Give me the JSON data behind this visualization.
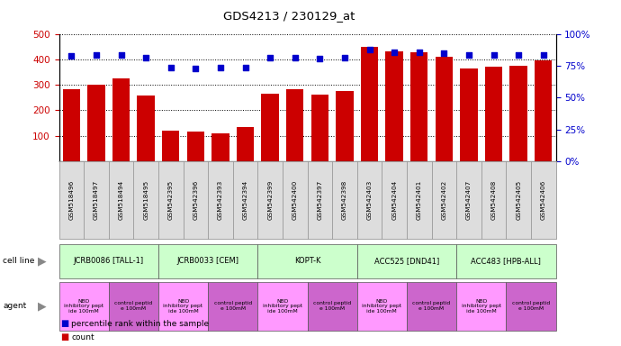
{
  "title": "GDS4213 / 230129_at",
  "samples": [
    "GSM518496",
    "GSM518497",
    "GSM518494",
    "GSM518495",
    "GSM542395",
    "GSM542396",
    "GSM542393",
    "GSM542394",
    "GSM542399",
    "GSM542400",
    "GSM542397",
    "GSM542398",
    "GSM542403",
    "GSM542404",
    "GSM542401",
    "GSM542402",
    "GSM542407",
    "GSM542408",
    "GSM542405",
    "GSM542406"
  ],
  "counts": [
    285,
    300,
    325,
    260,
    120,
    115,
    108,
    135,
    265,
    285,
    262,
    278,
    450,
    433,
    430,
    413,
    365,
    372,
    377,
    397
  ],
  "percentiles": [
    83,
    84,
    84,
    82,
    74,
    73,
    74,
    74,
    82,
    82,
    81,
    82,
    88,
    86,
    86,
    85,
    84,
    84,
    84,
    84
  ],
  "cell_lines": [
    {
      "label": "JCRB0086 [TALL-1]",
      "start": 0,
      "end": 4
    },
    {
      "label": "JCRB0033 [CEM]",
      "start": 4,
      "end": 8
    },
    {
      "label": "KOPT-K",
      "start": 8,
      "end": 12
    },
    {
      "label": "ACC525 [DND41]",
      "start": 12,
      "end": 16
    },
    {
      "label": "ACC483 [HPB-ALL]",
      "start": 16,
      "end": 20
    }
  ],
  "agents": [
    {
      "label": "NBD\ninhibitory pept\nide 100mM",
      "start": 0,
      "end": 2,
      "is_nbd": true
    },
    {
      "label": "control peptid\ne 100mM",
      "start": 2,
      "end": 4,
      "is_nbd": false
    },
    {
      "label": "NBD\ninhibitory pept\nide 100mM",
      "start": 4,
      "end": 6,
      "is_nbd": true
    },
    {
      "label": "control peptid\ne 100mM",
      "start": 6,
      "end": 8,
      "is_nbd": false
    },
    {
      "label": "NBD\ninhibitory pept\nide 100mM",
      "start": 8,
      "end": 10,
      "is_nbd": true
    },
    {
      "label": "control peptid\ne 100mM",
      "start": 10,
      "end": 12,
      "is_nbd": false
    },
    {
      "label": "NBD\ninhibitory pept\nide 100mM",
      "start": 12,
      "end": 14,
      "is_nbd": true
    },
    {
      "label": "control peptid\ne 100mM",
      "start": 14,
      "end": 16,
      "is_nbd": false
    },
    {
      "label": "NBD\ninhibitory pept\nide 100mM",
      "start": 16,
      "end": 18,
      "is_nbd": true
    },
    {
      "label": "control peptid\ne 100mM",
      "start": 18,
      "end": 20,
      "is_nbd": false
    }
  ],
  "bar_color": "#CC0000",
  "dot_color": "#0000CC",
  "cell_line_color_light": "#ccffcc",
  "cell_line_color_bright": "#66ff66",
  "agent_nbd_color": "#ff99ff",
  "agent_ctrl_color": "#cc66cc",
  "tick_bg_color": "#cccccc",
  "ylim_left": [
    0,
    500
  ],
  "ylim_right": [
    0,
    100
  ],
  "yticks_left": [
    100,
    200,
    300,
    400,
    500
  ],
  "yticks_right": [
    0,
    25,
    50,
    75,
    100
  ],
  "background_color": "#FFFFFF",
  "tick_label_color_left": "#CC0000",
  "tick_label_color_right": "#0000CC"
}
